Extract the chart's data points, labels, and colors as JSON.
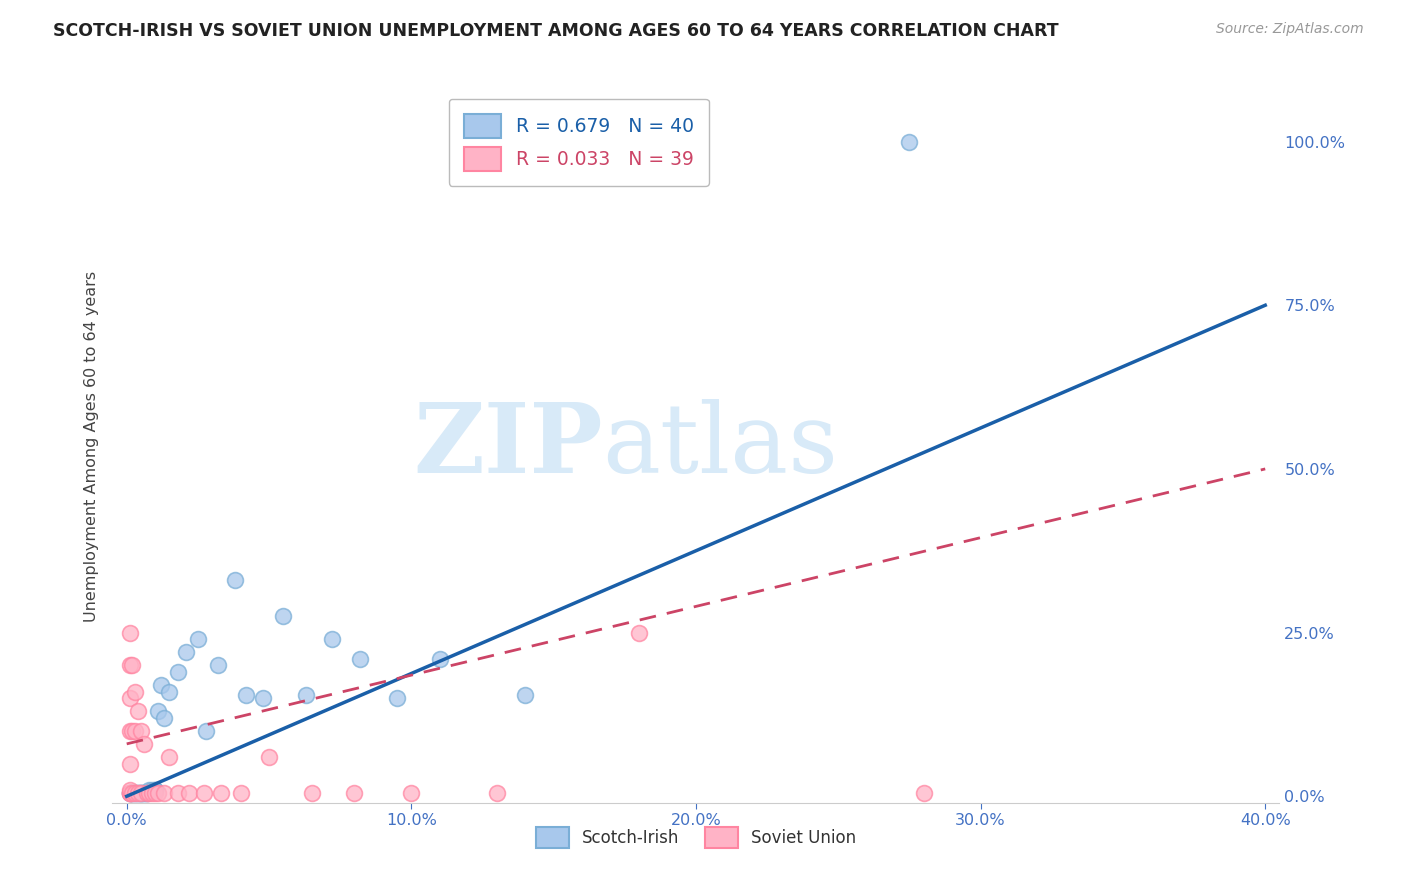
{
  "title": "SCOTCH-IRISH VS SOVIET UNION UNEMPLOYMENT AMONG AGES 60 TO 64 YEARS CORRELATION CHART",
  "source": "Source: ZipAtlas.com",
  "ylabel": "Unemployment Among Ages 60 to 64 years",
  "legend_labels": [
    "Scotch-Irish",
    "Soviet Union"
  ],
  "legend_R": [
    0.679,
    0.033
  ],
  "legend_N": [
    40,
    39
  ],
  "scotch_irish_x": [
    0.001,
    0.001,
    0.002,
    0.002,
    0.003,
    0.003,
    0.004,
    0.004,
    0.005,
    0.005,
    0.005,
    0.006,
    0.006,
    0.007,
    0.007,
    0.008,
    0.009,
    0.01,
    0.01,
    0.011,
    0.012,
    0.013,
    0.015,
    0.018,
    0.021,
    0.025,
    0.028,
    0.032,
    0.038,
    0.042,
    0.048,
    0.055,
    0.063,
    0.072,
    0.082,
    0.095,
    0.11,
    0.14,
    0.18,
    0.275
  ],
  "scotch_irish_y": [
    0.005,
    0.005,
    0.005,
    0.005,
    0.005,
    0.005,
    0.005,
    0.005,
    0.005,
    0.005,
    0.005,
    0.005,
    0.005,
    0.005,
    0.005,
    0.01,
    0.01,
    0.01,
    0.01,
    0.13,
    0.17,
    0.12,
    0.16,
    0.19,
    0.22,
    0.24,
    0.1,
    0.2,
    0.33,
    0.155,
    0.15,
    0.275,
    0.155,
    0.24,
    0.21,
    0.15,
    0.21,
    0.155,
    1.0,
    1.0
  ],
  "soviet_x": [
    0.001,
    0.001,
    0.001,
    0.001,
    0.001,
    0.001,
    0.001,
    0.001,
    0.001,
    0.002,
    0.002,
    0.002,
    0.003,
    0.003,
    0.003,
    0.004,
    0.004,
    0.005,
    0.005,
    0.006,
    0.007,
    0.008,
    0.009,
    0.01,
    0.011,
    0.013,
    0.015,
    0.018,
    0.022,
    0.027,
    0.033,
    0.04,
    0.05,
    0.065,
    0.08,
    0.1,
    0.13,
    0.18,
    0.28
  ],
  "soviet_y": [
    0.005,
    0.005,
    0.005,
    0.01,
    0.05,
    0.1,
    0.15,
    0.2,
    0.25,
    0.005,
    0.1,
    0.2,
    0.005,
    0.1,
    0.16,
    0.005,
    0.13,
    0.005,
    0.1,
    0.08,
    0.005,
    0.005,
    0.005,
    0.005,
    0.005,
    0.005,
    0.06,
    0.005,
    0.005,
    0.005,
    0.005,
    0.005,
    0.06,
    0.005,
    0.005,
    0.005,
    0.005,
    0.25,
    0.005
  ],
  "si_trend_x": [
    0.0,
    0.4
  ],
  "si_trend_y": [
    0.0,
    0.75
  ],
  "sv_trend_x": [
    0.0,
    0.4
  ],
  "sv_trend_y": [
    0.08,
    0.5
  ],
  "xlim": [
    -0.005,
    0.405
  ],
  "ylim": [
    -0.01,
    1.08
  ],
  "yticks": [
    0.0,
    0.25,
    0.5,
    0.75,
    1.0
  ],
  "xticks": [
    0.0,
    0.1,
    0.2,
    0.3,
    0.4
  ],
  "blue_scatter_face": "#A8C8EC",
  "blue_scatter_edge": "#7AAED6",
  "pink_scatter_face": "#FFB3C6",
  "pink_scatter_edge": "#FF85A1",
  "trend_blue": "#1A5FA8",
  "trend_pink": "#CC4466",
  "axis_color": "#4472C4",
  "title_color": "#222222",
  "source_color": "#999999",
  "background": "#FFFFFF",
  "grid_color": "#CCCCCC",
  "watermark_zip_color": "#D8EAF8",
  "watermark_atlas_color": "#D8EAF8"
}
